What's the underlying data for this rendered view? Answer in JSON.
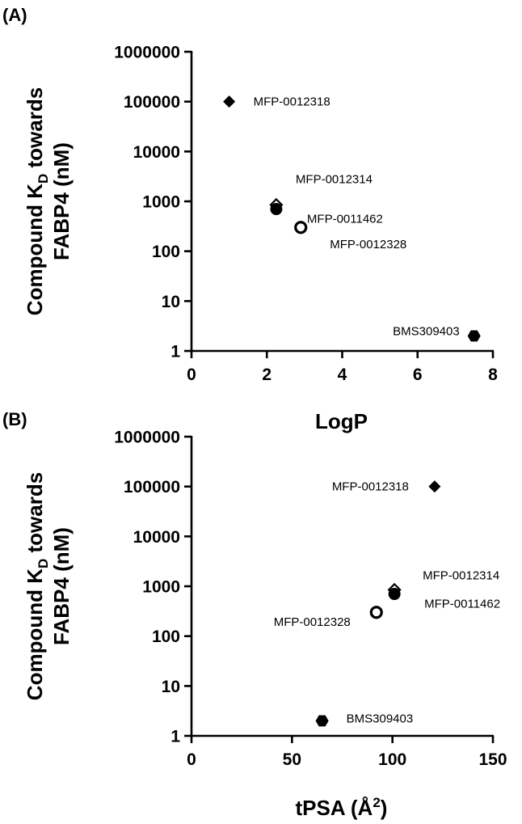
{
  "chart_data": [
    {
      "type": "scatter",
      "panel_label": "(A)",
      "xlabel": "LogP",
      "ylabel": {
        "main": "Compound K",
        "sub": "D",
        "rest": " towards",
        "line2": "FABP4 (nM)"
      },
      "xlim": [
        0,
        8
      ],
      "x_ticks": [
        0,
        2,
        4,
        6,
        8
      ],
      "x_tick_labels": [
        "0",
        "2",
        "4",
        "6",
        "8"
      ],
      "ylim": [
        1,
        1000000
      ],
      "y_scale": "log",
      "y_ticks": [
        1,
        10,
        100,
        1000,
        10000,
        100000,
        1000000
      ],
      "y_tick_labels": [
        "1",
        "10",
        "100",
        "1000",
        "10000",
        "100000",
        "1000000"
      ],
      "grid": false,
      "points": [
        {
          "label": "MFP-0012318",
          "x": 1.0,
          "y": 100000,
          "marker": "diamond"
        },
        {
          "label": "MFP-0012314",
          "x": 2.25,
          "y": 850,
          "marker": "diamond-open"
        },
        {
          "label": "MFP-0011462",
          "x": 2.25,
          "y": 700,
          "marker": "circle"
        },
        {
          "label": "MFP-0012328",
          "x": 2.9,
          "y": 300,
          "marker": "circle-open"
        },
        {
          "label": "BMS309403",
          "x": 7.5,
          "y": 2,
          "marker": "hexagon"
        }
      ]
    },
    {
      "type": "scatter",
      "panel_label": "(B)",
      "xlabel": {
        "main": "tPSA (Å",
        "sup": "2",
        "end": ")"
      },
      "ylabel": {
        "main": "Compound K",
        "sub": "D",
        "rest": " towards",
        "line2": "FABP4 (nM)"
      },
      "xlim": [
        0,
        150
      ],
      "x_ticks": [
        0,
        50,
        100,
        150
      ],
      "x_tick_labels": [
        "0",
        "50",
        "100",
        "150"
      ],
      "ylim": [
        1,
        1000000
      ],
      "y_scale": "log",
      "y_ticks": [
        1,
        10,
        100,
        1000,
        10000,
        100000,
        1000000
      ],
      "y_tick_labels": [
        "1",
        "10",
        "100",
        "1000",
        "10000",
        "100000",
        "1000000"
      ],
      "grid": false,
      "points": [
        {
          "label": "MFP-0012318",
          "x": 121,
          "y": 100000,
          "marker": "diamond"
        },
        {
          "label": "MFP-0012314",
          "x": 101,
          "y": 850,
          "marker": "diamond-open"
        },
        {
          "label": "MFP-0011462",
          "x": 101,
          "y": 700,
          "marker": "circle"
        },
        {
          "label": "MFP-0012328",
          "x": 92,
          "y": 300,
          "marker": "circle-open"
        },
        {
          "label": "BMS309403",
          "x": 65,
          "y": 2,
          "marker": "hexagon"
        }
      ]
    }
  ]
}
